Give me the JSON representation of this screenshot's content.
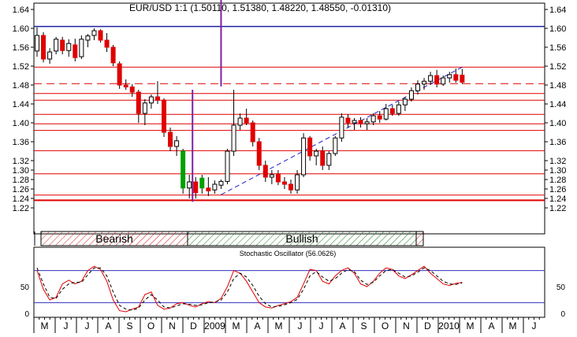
{
  "colors": {
    "background": "#ffffff",
    "frame": "#000000",
    "up_candle": "#ffffff",
    "down_candle": "#e00000",
    "green_candle": "#00a000",
    "resistance_line": "#e00000",
    "top_line": "#2020a0",
    "cursor_line": "#8020a0",
    "trend_line": "#2020c0",
    "stoch_k": "#e00000",
    "stoch_d": "#000000",
    "stoch_level": "#3030c0",
    "bearish_hatch": "#d02020",
    "bullish_hatch": "#208020"
  },
  "chart_data": [
    {
      "type": "candlestick",
      "title": "EUR/USD 1:1 (1.50110, 1.51380, 1.48220, 1.48550, -0.01310)",
      "ylim": [
        1.2,
        1.66
      ],
      "y_ticks": [
        "1.64",
        "1.60",
        "1.56",
        "1.52",
        "1.48",
        "1.44",
        "1.40",
        "1.36",
        "1.32",
        "1.30",
        "1.28",
        "1.26",
        "1.24",
        "1.22"
      ],
      "horizontal_levels": {
        "top": 1.604,
        "dashed": 1.483,
        "solid": [
          1.518,
          1.462,
          1.448,
          1.418,
          1.398,
          1.384,
          1.341,
          1.292,
          1.247,
          1.236
        ]
      },
      "trend_line": {
        "from": [
          29,
          1.248
        ],
        "to": [
          67,
          1.518
        ]
      },
      "cursor_lines": [
        {
          "x": 29,
          "from": 1.477,
          "to": 1.66
        },
        {
          "x": 24.5,
          "from": 1.233,
          "to": 1.47
        }
      ],
      "candles": [
        {
          "x": 0,
          "o": 1.552,
          "h": 1.602,
          "l": 1.54,
          "c": 1.585
        },
        {
          "x": 1,
          "o": 1.585,
          "h": 1.592,
          "l": 1.528,
          "c": 1.535
        },
        {
          "x": 2,
          "o": 1.535,
          "h": 1.558,
          "l": 1.525,
          "c": 1.55
        },
        {
          "x": 3,
          "o": 1.552,
          "h": 1.582,
          "l": 1.545,
          "c": 1.577
        },
        {
          "x": 4,
          "o": 1.575,
          "h": 1.582,
          "l": 1.545,
          "c": 1.553
        },
        {
          "x": 5,
          "o": 1.553,
          "h": 1.577,
          "l": 1.54,
          "c": 1.568
        },
        {
          "x": 6,
          "o": 1.565,
          "h": 1.578,
          "l": 1.53,
          "c": 1.538
        },
        {
          "x": 7,
          "o": 1.54,
          "h": 1.585,
          "l": 1.535,
          "c": 1.577
        },
        {
          "x": 8,
          "o": 1.575,
          "h": 1.588,
          "l": 1.56,
          "c": 1.584
        },
        {
          "x": 9,
          "o": 1.585,
          "h": 1.6,
          "l": 1.575,
          "c": 1.595
        },
        {
          "x": 10,
          "o": 1.595,
          "h": 1.598,
          "l": 1.57,
          "c": 1.575
        },
        {
          "x": 11,
          "o": 1.575,
          "h": 1.59,
          "l": 1.55,
          "c": 1.56
        },
        {
          "x": 12,
          "o": 1.56,
          "h": 1.565,
          "l": 1.52,
          "c": 1.527
        },
        {
          "x": 13,
          "o": 1.525,
          "h": 1.53,
          "l": 1.472,
          "c": 1.48
        },
        {
          "x": 14,
          "o": 1.48,
          "h": 1.492,
          "l": 1.47,
          "c": 1.476
        },
        {
          "x": 15,
          "o": 1.476,
          "h": 1.482,
          "l": 1.455,
          "c": 1.465
        },
        {
          "x": 16,
          "o": 1.465,
          "h": 1.47,
          "l": 1.4,
          "c": 1.42
        },
        {
          "x": 17,
          "o": 1.42,
          "h": 1.45,
          "l": 1.395,
          "c": 1.442
        },
        {
          "x": 18,
          "o": 1.442,
          "h": 1.46,
          "l": 1.43,
          "c": 1.455
        },
        {
          "x": 19,
          "o": 1.455,
          "h": 1.488,
          "l": 1.44,
          "c": 1.448
        },
        {
          "x": 20,
          "o": 1.448,
          "h": 1.452,
          "l": 1.37,
          "c": 1.38
        },
        {
          "x": 21,
          "o": 1.38,
          "h": 1.39,
          "l": 1.34,
          "c": 1.35
        },
        {
          "x": 22,
          "o": 1.35,
          "h": 1.372,
          "l": 1.33,
          "c": 1.362
        },
        {
          "x": 23,
          "o": 1.34,
          "h": 1.345,
          "l": 1.25,
          "c": 1.262,
          "g": true
        },
        {
          "x": 24,
          "o": 1.262,
          "h": 1.29,
          "l": 1.24,
          "c": 1.275
        },
        {
          "x": 25,
          "o": 1.275,
          "h": 1.285,
          "l": 1.24,
          "c": 1.252
        },
        {
          "x": 26,
          "o": 1.283,
          "h": 1.29,
          "l": 1.25,
          "c": 1.262,
          "g": true
        },
        {
          "x": 27,
          "o": 1.262,
          "h": 1.285,
          "l": 1.245,
          "c": 1.256
        },
        {
          "x": 28,
          "o": 1.258,
          "h": 1.278,
          "l": 1.25,
          "c": 1.27
        },
        {
          "x": 29,
          "o": 1.268,
          "h": 1.28,
          "l": 1.26,
          "c": 1.276
        },
        {
          "x": 30,
          "o": 1.276,
          "h": 1.345,
          "l": 1.27,
          "c": 1.34
        },
        {
          "x": 31,
          "o": 1.34,
          "h": 1.47,
          "l": 1.33,
          "c": 1.395
        },
        {
          "x": 32,
          "o": 1.395,
          "h": 1.42,
          "l": 1.385,
          "c": 1.41
        },
        {
          "x": 33,
          "o": 1.41,
          "h": 1.43,
          "l": 1.395,
          "c": 1.4
        },
        {
          "x": 34,
          "o": 1.4,
          "h": 1.405,
          "l": 1.35,
          "c": 1.36
        },
        {
          "x": 35,
          "o": 1.36,
          "h": 1.368,
          "l": 1.3,
          "c": 1.31
        },
        {
          "x": 36,
          "o": 1.31,
          "h": 1.32,
          "l": 1.275,
          "c": 1.285
        },
        {
          "x": 37,
          "o": 1.285,
          "h": 1.3,
          "l": 1.27,
          "c": 1.29
        },
        {
          "x": 38,
          "o": 1.292,
          "h": 1.3,
          "l": 1.268,
          "c": 1.275
        },
        {
          "x": 39,
          "o": 1.275,
          "h": 1.285,
          "l": 1.26,
          "c": 1.27
        },
        {
          "x": 40,
          "o": 1.27,
          "h": 1.28,
          "l": 1.25,
          "c": 1.258
        },
        {
          "x": 41,
          "o": 1.258,
          "h": 1.3,
          "l": 1.25,
          "c": 1.29
        },
        {
          "x": 42,
          "o": 1.29,
          "h": 1.378,
          "l": 1.285,
          "c": 1.368
        },
        {
          "x": 43,
          "o": 1.368,
          "h": 1.372,
          "l": 1.32,
          "c": 1.33
        },
        {
          "x": 44,
          "o": 1.33,
          "h": 1.345,
          "l": 1.31,
          "c": 1.34
        },
        {
          "x": 45,
          "o": 1.34,
          "h": 1.35,
          "l": 1.3,
          "c": 1.31
        },
        {
          "x": 46,
          "o": 1.31,
          "h": 1.34,
          "l": 1.3,
          "c": 1.335
        },
        {
          "x": 47,
          "o": 1.335,
          "h": 1.372,
          "l": 1.33,
          "c": 1.368
        },
        {
          "x": 48,
          "o": 1.368,
          "h": 1.42,
          "l": 1.36,
          "c": 1.412
        },
        {
          "x": 49,
          "o": 1.41,
          "h": 1.418,
          "l": 1.39,
          "c": 1.4
        },
        {
          "x": 50,
          "o": 1.4,
          "h": 1.41,
          "l": 1.385,
          "c": 1.405
        },
        {
          "x": 51,
          "o": 1.405,
          "h": 1.412,
          "l": 1.39,
          "c": 1.398
        },
        {
          "x": 52,
          "o": 1.398,
          "h": 1.41,
          "l": 1.385,
          "c": 1.402
        },
        {
          "x": 53,
          "o": 1.402,
          "h": 1.42,
          "l": 1.395,
          "c": 1.415
        },
        {
          "x": 54,
          "o": 1.415,
          "h": 1.425,
          "l": 1.4,
          "c": 1.408
        },
        {
          "x": 55,
          "o": 1.408,
          "h": 1.44,
          "l": 1.405,
          "c": 1.43
        },
        {
          "x": 56,
          "o": 1.43,
          "h": 1.438,
          "l": 1.415,
          "c": 1.42
        },
        {
          "x": 57,
          "o": 1.42,
          "h": 1.445,
          "l": 1.415,
          "c": 1.438
        },
        {
          "x": 58,
          "o": 1.438,
          "h": 1.455,
          "l": 1.425,
          "c": 1.45
        },
        {
          "x": 59,
          "o": 1.45,
          "h": 1.475,
          "l": 1.445,
          "c": 1.468
        },
        {
          "x": 60,
          "o": 1.468,
          "h": 1.49,
          "l": 1.46,
          "c": 1.482
        },
        {
          "x": 61,
          "o": 1.482,
          "h": 1.495,
          "l": 1.47,
          "c": 1.488
        },
        {
          "x": 62,
          "o": 1.488,
          "h": 1.508,
          "l": 1.48,
          "c": 1.5
        },
        {
          "x": 63,
          "o": 1.5,
          "h": 1.512,
          "l": 1.475,
          "c": 1.482
        },
        {
          "x": 64,
          "o": 1.482,
          "h": 1.5,
          "l": 1.478,
          "c": 1.495
        },
        {
          "x": 65,
          "o": 1.495,
          "h": 1.508,
          "l": 1.485,
          "c": 1.502
        },
        {
          "x": 66,
          "o": 1.502,
          "h": 1.515,
          "l": 1.485,
          "c": 1.49
        },
        {
          "x": 67,
          "o": 1.501,
          "h": 1.514,
          "l": 1.482,
          "c": 1.486
        }
      ]
    },
    {
      "type": "line",
      "title": "Stochastic Oscillator (56.0626)",
      "ylim": [
        0,
        100
      ],
      "y_ticks": [
        "50",
        "0"
      ],
      "levels": [
        80,
        20
      ],
      "series": [
        {
          "style": "solid",
          "values": [
            80,
            45,
            25,
            30,
            55,
            62,
            55,
            60,
            80,
            88,
            82,
            60,
            25,
            5,
            3,
            8,
            12,
            35,
            40,
            15,
            8,
            10,
            18,
            20,
            15,
            12,
            18,
            22,
            20,
            28,
            50,
            80,
            75,
            60,
            40,
            20,
            12,
            10,
            15,
            18,
            22,
            30,
            55,
            82,
            80,
            60,
            55,
            70,
            80,
            85,
            75,
            55,
            50,
            60,
            75,
            85,
            82,
            70,
            65,
            72,
            80,
            88,
            75,
            65,
            55,
            52,
            56,
            58
          ]
        },
        {
          "style": "dashed",
          "values": [
            85,
            55,
            30,
            28,
            45,
            55,
            58,
            58,
            72,
            85,
            85,
            70,
            40,
            15,
            8,
            6,
            10,
            25,
            35,
            25,
            12,
            10,
            14,
            18,
            17,
            15,
            16,
            20,
            21,
            25,
            40,
            65,
            75,
            68,
            52,
            32,
            18,
            12,
            13,
            16,
            20,
            26,
            45,
            70,
            78,
            68,
            60,
            65,
            75,
            82,
            78,
            62,
            54,
            58,
            70,
            80,
            82,
            75,
            68,
            70,
            77,
            85,
            80,
            70,
            60,
            55,
            54,
            57
          ]
        }
      ]
    }
  ],
  "zones": [
    {
      "label": "Bearish",
      "kind": "bearish"
    },
    {
      "label": "Bullish",
      "kind": "bullish"
    }
  ],
  "x_axis": {
    "labels": [
      "M",
      "J",
      "J",
      "A",
      "S",
      "O",
      "N",
      "D",
      "2009",
      "M",
      "A",
      "M",
      "J",
      "J",
      "A",
      "S",
      "O",
      "N",
      "D",
      "2010",
      "M",
      "A",
      "M",
      "J"
    ]
  }
}
